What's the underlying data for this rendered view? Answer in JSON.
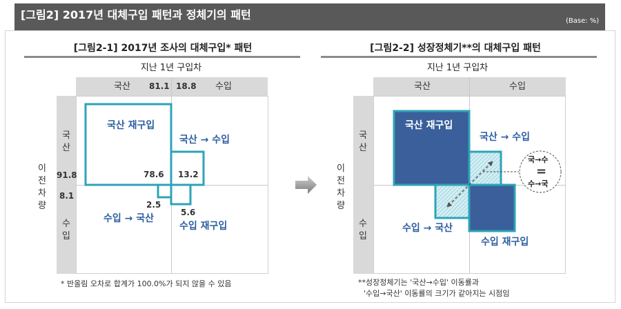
{
  "header": {
    "title": "[그림2] 2017년 대체구입 패턴과 정체기의 패턴",
    "base_note": "(Base: %)"
  },
  "left": {
    "subtitle": "[그림2-1] 2017년 조사의 대체구입* 패턴",
    "top_axis": "지난 1년 구입차",
    "side_axis": "이전차량",
    "col_domestic": "국산",
    "col_domestic_value": "81.1",
    "col_import_value": "18.8",
    "col_import": "수입",
    "row_domestic": "국산",
    "row_domestic_value": "91.8",
    "row_import_value": "8.1",
    "row_import": "수입",
    "cells": {
      "domestic_repurchase": {
        "label": "국산 재구입",
        "value": "78.6"
      },
      "domestic_to_import": {
        "label": "국산 → 수입",
        "value": "13.2"
      },
      "import_to_domestic": {
        "label": "수입 → 국산",
        "value": "2.5"
      },
      "import_repurchase": {
        "label": "수입 재구입",
        "value": "5.6"
      }
    },
    "footnote": "* 반올림 오차로 합계가 100.0%가 되지 않을 수 있음"
  },
  "right": {
    "subtitle": "[그림2-2] 성장정체기**의 대체구입 패턴",
    "top_axis": "지난 1년 구입차",
    "side_axis": "이전차량",
    "col_domestic": "국산",
    "col_import": "수입",
    "row_domestic": "국산",
    "row_import": "수입",
    "cells": {
      "domestic_repurchase": "국산 재구입",
      "domestic_to_import": "국산 → 수입",
      "import_to_domestic": "수입 → 국산",
      "import_repurchase": "수입 재구입"
    },
    "equality": {
      "top": "국→수",
      "sign": "=",
      "bottom": "수→국"
    },
    "footnote_1": "**성장정체기는 '국산→수입' 이동률과",
    "footnote_2": "'수입→국산' 이동률의 크기가 같아지는 시점임"
  },
  "colors": {
    "header": "#595959",
    "teal": "#2ea3b8",
    "navy": "#3a5f9a",
    "label_blue": "#2e5fa0",
    "band": "#d9d9d9"
  },
  "icons": {
    "transition": "right-arrow-icon"
  }
}
